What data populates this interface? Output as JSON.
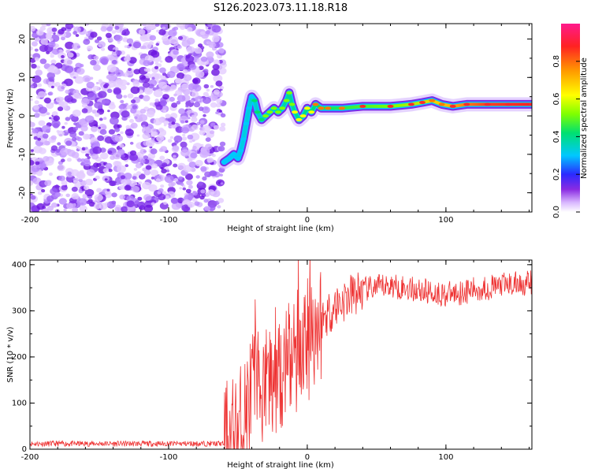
{
  "title": "S126.2023.073.11.18.R18",
  "colors": {
    "snr_line": "#ee3333",
    "noise": "#8a2be2",
    "axis": "#000000"
  },
  "chart_data": [
    {
      "type": "heatmap",
      "title": "S126.2023.073.11.18.R18",
      "xlabel": "Height of straight line (km)",
      "ylabel": "Frequency (Hz)",
      "xlim": [
        -200,
        162
      ],
      "ylim": [
        -25,
        24
      ],
      "xticks": [
        -200,
        -100,
        0,
        100
      ],
      "yticks": [
        -20,
        -10,
        0,
        10,
        20
      ],
      "colorbar": {
        "label": "Normalized spectral amplitude",
        "range": [
          0,
          1
        ],
        "ticks": [
          0.0,
          0.2,
          0.4,
          0.6,
          0.8
        ]
      },
      "noise_region_x": [
        -200,
        -60
      ],
      "ridge_x": [
        -60,
        -56,
        -53,
        -50,
        -48,
        -46,
        -44,
        -42,
        -40,
        -38,
        -36,
        -33,
        -30,
        -27,
        -24,
        -21,
        -18,
        -15,
        -13,
        -11,
        -9,
        -6,
        -3,
        0,
        3,
        6,
        10,
        15,
        25,
        40,
        60,
        75,
        83,
        90,
        97,
        105,
        115,
        130,
        145,
        162
      ],
      "ridge_freq": [
        -12,
        -11,
        -10,
        -11,
        -9,
        -6,
        -2,
        2,
        5,
        4,
        1,
        -1,
        0,
        1,
        2,
        1,
        2,
        4,
        6,
        3,
        1,
        -1,
        0,
        2,
        1,
        3,
        2,
        2,
        2,
        2.5,
        2.5,
        3,
        3.5,
        4,
        3,
        2.5,
        3,
        3,
        3,
        3
      ],
      "ridge_amp": [
        0.25,
        0.22,
        0.2,
        0.24,
        0.18,
        0.2,
        0.26,
        0.3,
        0.34,
        0.4,
        0.45,
        0.5,
        0.55,
        0.6,
        0.6,
        0.62,
        0.65,
        0.6,
        0.55,
        0.65,
        0.7,
        0.72,
        0.75,
        0.78,
        0.8,
        0.82,
        0.85,
        0.88,
        0.9,
        0.92,
        0.95,
        0.96,
        0.93,
        0.9,
        0.9,
        0.92,
        0.96,
        0.98,
        0.98,
        0.98
      ]
    },
    {
      "type": "line",
      "xlabel": "Height of straight line (km)",
      "ylabel": "SNR (10 * v/v)",
      "xlim": [
        -200,
        162
      ],
      "ylim": [
        0,
        410
      ],
      "xticks": [
        -200,
        -100,
        0,
        100
      ],
      "yticks": [
        0,
        100,
        200,
        300,
        400
      ],
      "series": [
        {
          "name": "SNR",
          "x": [
            -200,
            -180,
            -160,
            -140,
            -120,
            -100,
            -80,
            -60,
            -52,
            -48,
            -44,
            -40,
            -36,
            -32,
            -28,
            -24,
            -20,
            -16,
            -12,
            -8,
            -4,
            0,
            5,
            10,
            20,
            30,
            40,
            50,
            60,
            70,
            80,
            90,
            100,
            110,
            120,
            130,
            140,
            150,
            162
          ],
          "y": [
            12,
            12,
            12,
            12,
            12,
            12,
            12,
            12,
            25,
            50,
            80,
            120,
            150,
            130,
            140,
            170,
            180,
            170,
            190,
            210,
            230,
            240,
            260,
            280,
            310,
            330,
            345,
            350,
            355,
            350,
            345,
            340,
            335,
            340,
            345,
            350,
            355,
            358,
            360
          ]
        }
      ]
    }
  ]
}
